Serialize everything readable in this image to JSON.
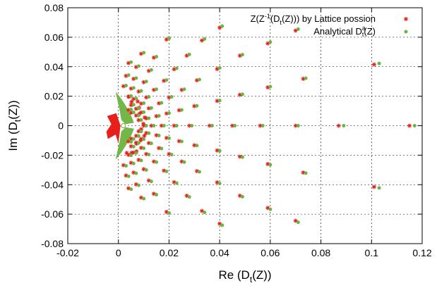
{
  "chart_data": {
    "type": "scatter",
    "xlabel": "Re (D_t(Z))",
    "ylabel": "Im (D_t(Z))",
    "xlim": [
      -0.02,
      0.12
    ],
    "ylim": [
      -0.08,
      0.08
    ],
    "xticks": [
      "-0.02",
      "0",
      "0.02",
      "0.04",
      "0.06",
      "0.08",
      "0.1",
      "0.12"
    ],
    "yticks": [
      "-0.08",
      "-0.06",
      "-0.04",
      "-0.02",
      "0",
      "0.02",
      "0.04",
      "0.06",
      "0.08"
    ],
    "grid": true,
    "legend_position": "top-right",
    "series": [
      {
        "name": "Z(Z⁻¹(D_t(Z))) by Lattice possion",
        "legend_parts": [
          "Z(Z",
          "-1",
          "(D",
          "t",
          "(Z))) by Lattice possion"
        ],
        "marker": "star",
        "color": "#e8201c",
        "points": [
          [
            0.115,
            0.0
          ],
          [
            0.101,
            0.0415
          ],
          [
            0.101,
            -0.0415
          ],
          [
            0.07,
            0.0645
          ],
          [
            0.07,
            -0.0645
          ],
          [
            0.087,
            0.0
          ],
          [
            0.073,
            0.0318
          ],
          [
            0.073,
            -0.0318
          ],
          [
            0.059,
            0.0558
          ],
          [
            0.059,
            -0.0558
          ],
          [
            0.04,
            0.0665
          ],
          [
            0.04,
            -0.0665
          ],
          [
            0.07,
            0.0
          ],
          [
            0.059,
            0.026
          ],
          [
            0.059,
            -0.026
          ],
          [
            0.048,
            0.0475
          ],
          [
            0.048,
            -0.0475
          ],
          [
            0.033,
            0.0578
          ],
          [
            0.033,
            -0.0578
          ],
          [
            0.056,
            0.0
          ],
          [
            0.048,
            0.021
          ],
          [
            0.048,
            -0.021
          ],
          [
            0.039,
            0.0385
          ],
          [
            0.039,
            -0.0385
          ],
          [
            0.027,
            0.0475
          ],
          [
            0.027,
            -0.0475
          ],
          [
            0.019,
            0.0585
          ],
          [
            0.019,
            -0.0585
          ],
          [
            0.045,
            0.0
          ],
          [
            0.039,
            0.0168
          ],
          [
            0.039,
            -0.0168
          ],
          [
            0.031,
            0.0308
          ],
          [
            0.031,
            -0.0308
          ],
          [
            0.022,
            0.0383
          ],
          [
            0.022,
            -0.0383
          ],
          [
            0.014,
            0.0462
          ],
          [
            0.014,
            -0.0462
          ],
          [
            0.009,
            0.0488
          ],
          [
            0.009,
            -0.0488
          ],
          [
            0.036,
            0.0
          ],
          [
            0.03,
            0.0133
          ],
          [
            0.03,
            -0.0133
          ],
          [
            0.025,
            0.0243
          ],
          [
            0.025,
            -0.0243
          ],
          [
            0.018,
            0.0305
          ],
          [
            0.018,
            -0.0305
          ],
          [
            0.012,
            0.0372
          ],
          [
            0.012,
            -0.0372
          ],
          [
            0.007,
            0.0398
          ],
          [
            0.007,
            -0.0398
          ],
          [
            0.004,
            0.0425
          ],
          [
            0.004,
            -0.0425
          ],
          [
            0.028,
            0.0
          ],
          [
            0.024,
            0.0105
          ],
          [
            0.024,
            -0.0105
          ],
          [
            0.02,
            0.0192
          ],
          [
            0.02,
            -0.0192
          ],
          [
            0.014,
            0.0243
          ],
          [
            0.014,
            -0.0243
          ],
          [
            0.01,
            0.0295
          ],
          [
            0.01,
            -0.0295
          ],
          [
            0.006,
            0.0318
          ],
          [
            0.006,
            -0.0318
          ],
          [
            0.003,
            0.0338
          ],
          [
            0.003,
            -0.0338
          ],
          [
            0.022,
            0.0
          ],
          [
            0.019,
            0.0083
          ],
          [
            0.019,
            -0.0083
          ],
          [
            0.016,
            0.0152
          ],
          [
            0.016,
            -0.0152
          ],
          [
            0.011,
            0.0192
          ],
          [
            0.011,
            -0.0192
          ],
          [
            0.008,
            0.0232
          ],
          [
            0.008,
            -0.0232
          ],
          [
            0.005,
            0.0252
          ],
          [
            0.005,
            -0.0252
          ],
          [
            0.002,
            0.0268
          ],
          [
            0.002,
            -0.0268
          ],
          [
            0.017,
            0.0
          ],
          [
            0.015,
            0.0065
          ],
          [
            0.015,
            -0.0065
          ],
          [
            0.012,
            0.0118
          ],
          [
            0.012,
            -0.0118
          ],
          [
            0.009,
            0.015
          ],
          [
            0.009,
            -0.015
          ],
          [
            0.006,
            0.0182
          ],
          [
            0.006,
            -0.0182
          ],
          [
            0.004,
            0.0198
          ],
          [
            0.004,
            -0.0198
          ],
          [
            0.013,
            0.0
          ],
          [
            0.011,
            0.005
          ],
          [
            0.011,
            -0.005
          ],
          [
            0.009,
            0.009
          ],
          [
            0.009,
            -0.009
          ],
          [
            0.007,
            0.0115
          ],
          [
            0.007,
            -0.0115
          ],
          [
            0.005,
            0.014
          ],
          [
            0.005,
            -0.014
          ],
          [
            0.01,
            0.0
          ],
          [
            0.008,
            0.0038
          ],
          [
            0.008,
            -0.0038
          ],
          [
            0.007,
            0.0069
          ],
          [
            0.007,
            -0.0069
          ],
          [
            0.005,
            0.0088
          ],
          [
            0.005,
            -0.0088
          ],
          [
            0.004,
            0.0107
          ],
          [
            0.004,
            -0.0107
          ]
        ]
      },
      {
        "name": "Analytical D^a_t(Z)",
        "legend_parts": [
          "Analytical D",
          "a",
          "t",
          "(Z)"
        ],
        "marker": "circle",
        "color": "#6cb33f",
        "points": [
          [
            0.117,
            0.0
          ],
          [
            0.103,
            0.0422
          ],
          [
            0.103,
            -0.0422
          ],
          [
            0.071,
            0.0655
          ],
          [
            0.071,
            -0.0655
          ],
          [
            0.089,
            0.0
          ],
          [
            0.074,
            0.0322
          ],
          [
            0.074,
            -0.0322
          ],
          [
            0.06,
            0.0567
          ],
          [
            0.06,
            -0.0567
          ],
          [
            0.041,
            0.0675
          ],
          [
            0.041,
            -0.0675
          ],
          [
            0.071,
            0.0
          ],
          [
            0.06,
            0.0265
          ],
          [
            0.06,
            -0.0265
          ],
          [
            0.049,
            0.0482
          ],
          [
            0.049,
            -0.0482
          ],
          [
            0.034,
            0.0588
          ],
          [
            0.034,
            -0.0588
          ],
          [
            0.057,
            0.0
          ],
          [
            0.049,
            0.0213
          ],
          [
            0.049,
            -0.0213
          ],
          [
            0.04,
            0.0392
          ],
          [
            0.04,
            -0.0392
          ],
          [
            0.028,
            0.0483
          ],
          [
            0.028,
            -0.0483
          ],
          [
            0.02,
            0.0592
          ],
          [
            0.02,
            -0.0592
          ],
          [
            0.046,
            0.0
          ],
          [
            0.04,
            0.0171
          ],
          [
            0.04,
            -0.0171
          ],
          [
            0.032,
            0.0313
          ],
          [
            0.032,
            -0.0313
          ],
          [
            0.023,
            0.0389
          ],
          [
            0.023,
            -0.0389
          ],
          [
            0.015,
            0.0468
          ],
          [
            0.015,
            -0.0468
          ],
          [
            0.01,
            0.0495
          ],
          [
            0.01,
            -0.0495
          ],
          [
            0.037,
            0.0
          ],
          [
            0.031,
            0.0135
          ],
          [
            0.031,
            -0.0135
          ],
          [
            0.026,
            0.0247
          ],
          [
            0.026,
            -0.0247
          ],
          [
            0.019,
            0.031
          ],
          [
            0.019,
            -0.031
          ],
          [
            0.013,
            0.0378
          ],
          [
            0.013,
            -0.0378
          ],
          [
            0.008,
            0.0404
          ],
          [
            0.008,
            -0.0404
          ],
          [
            0.005,
            0.0431
          ],
          [
            0.005,
            -0.0431
          ],
          [
            0.029,
            0.0
          ],
          [
            0.025,
            0.0107
          ],
          [
            0.025,
            -0.0107
          ],
          [
            0.021,
            0.0196
          ],
          [
            0.021,
            -0.0196
          ],
          [
            0.015,
            0.0247
          ],
          [
            0.015,
            -0.0247
          ],
          [
            0.011,
            0.03
          ],
          [
            0.011,
            -0.03
          ],
          [
            0.007,
            0.0323
          ],
          [
            0.007,
            -0.0323
          ],
          [
            0.004,
            0.0343
          ],
          [
            0.004,
            -0.0343
          ],
          [
            0.023,
            0.0
          ],
          [
            0.02,
            0.0085
          ],
          [
            0.02,
            -0.0085
          ],
          [
            0.017,
            0.0155
          ],
          [
            0.017,
            -0.0155
          ],
          [
            0.012,
            0.0196
          ],
          [
            0.012,
            -0.0196
          ],
          [
            0.009,
            0.0236
          ],
          [
            0.009,
            -0.0236
          ],
          [
            0.006,
            0.0256
          ],
          [
            0.006,
            -0.0256
          ],
          [
            0.003,
            0.0272
          ],
          [
            0.003,
            -0.0272
          ],
          [
            0.018,
            0.0
          ],
          [
            0.016,
            0.0067
          ],
          [
            0.016,
            -0.0067
          ],
          [
            0.013,
            0.012
          ],
          [
            0.013,
            -0.012
          ],
          [
            0.01,
            0.0153
          ],
          [
            0.01,
            -0.0153
          ],
          [
            0.007,
            0.0185
          ],
          [
            0.007,
            -0.0185
          ],
          [
            0.005,
            0.0201
          ],
          [
            0.005,
            -0.0201
          ],
          [
            0.014,
            0.0
          ],
          [
            0.012,
            0.0051
          ],
          [
            0.012,
            -0.0051
          ],
          [
            0.01,
            0.0092
          ],
          [
            0.01,
            -0.0092
          ],
          [
            0.008,
            0.0117
          ],
          [
            0.008,
            -0.0117
          ],
          [
            0.006,
            0.0142
          ],
          [
            0.006,
            -0.0142
          ],
          [
            0.011,
            0.0
          ],
          [
            0.009,
            0.0039
          ],
          [
            0.009,
            -0.0039
          ],
          [
            0.008,
            0.007
          ],
          [
            0.008,
            -0.007
          ],
          [
            0.006,
            0.009
          ],
          [
            0.006,
            -0.009
          ],
          [
            0.005,
            0.0109
          ],
          [
            0.005,
            -0.0109
          ]
        ]
      }
    ]
  }
}
